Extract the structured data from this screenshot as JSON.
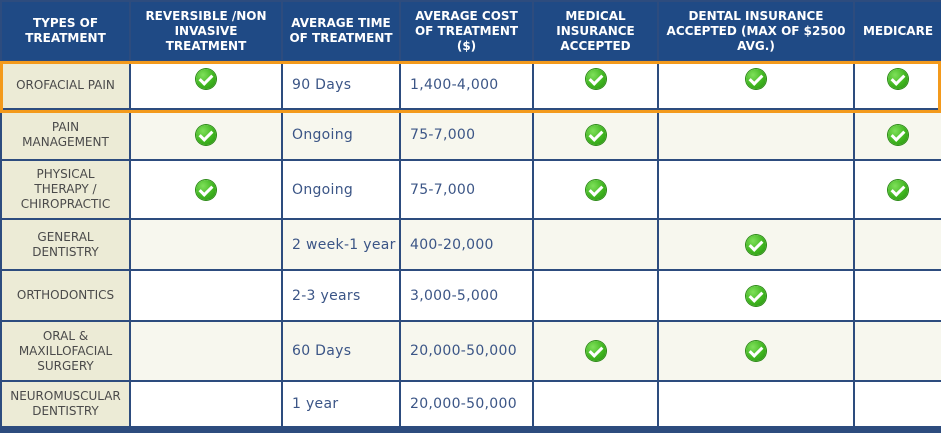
{
  "colors": {
    "header_bg": "#1f4a85",
    "grid": "#2d4c7e",
    "name_cell_bg": "#ecebd6",
    "highlight_border": "#f39a1c",
    "check_green": "#3fb51f"
  },
  "headers": [
    "Types of Treatment",
    "Reversible /Non Invasive Treatment",
    "Average Time of Treatment",
    "Average Cost of Treatment ($)",
    "Medical Insurance Accepted",
    "Dental Insurance Accepted (Max of $2500 Avg.)",
    "Medicare"
  ],
  "rows": [
    {
      "type": "Orofacial Pain",
      "reversible": true,
      "time": "90 Days",
      "cost": "1,400-4,000",
      "medical": true,
      "dental": true,
      "medicare": true,
      "highlighted": true
    },
    {
      "type": "Pain Management",
      "reversible": true,
      "time": "Ongoing",
      "cost": "75-7,000",
      "medical": true,
      "dental": false,
      "medicare": true
    },
    {
      "type": "Physical Therapy / Chiropractic",
      "reversible": true,
      "time": "Ongoing",
      "cost": "75-7,000",
      "medical": true,
      "dental": false,
      "medicare": true
    },
    {
      "type": "General Dentistry",
      "reversible": false,
      "time": "2 week-1 year",
      "cost": "400-20,000",
      "medical": false,
      "dental": true,
      "medicare": false
    },
    {
      "type": "Orthodontics",
      "reversible": false,
      "time": "2-3 years",
      "cost": "3,000-5,000",
      "medical": false,
      "dental": true,
      "medicare": false
    },
    {
      "type": "Oral & Maxillofacial Surgery",
      "reversible": false,
      "time": "60 Days",
      "cost": "20,000-50,000",
      "medical": true,
      "dental": true,
      "medicare": false
    },
    {
      "type": "Neuromuscular Dentistry",
      "reversible": false,
      "time": "1 year",
      "cost": "20,000-50,000",
      "medical": false,
      "dental": false,
      "medicare": false
    }
  ]
}
